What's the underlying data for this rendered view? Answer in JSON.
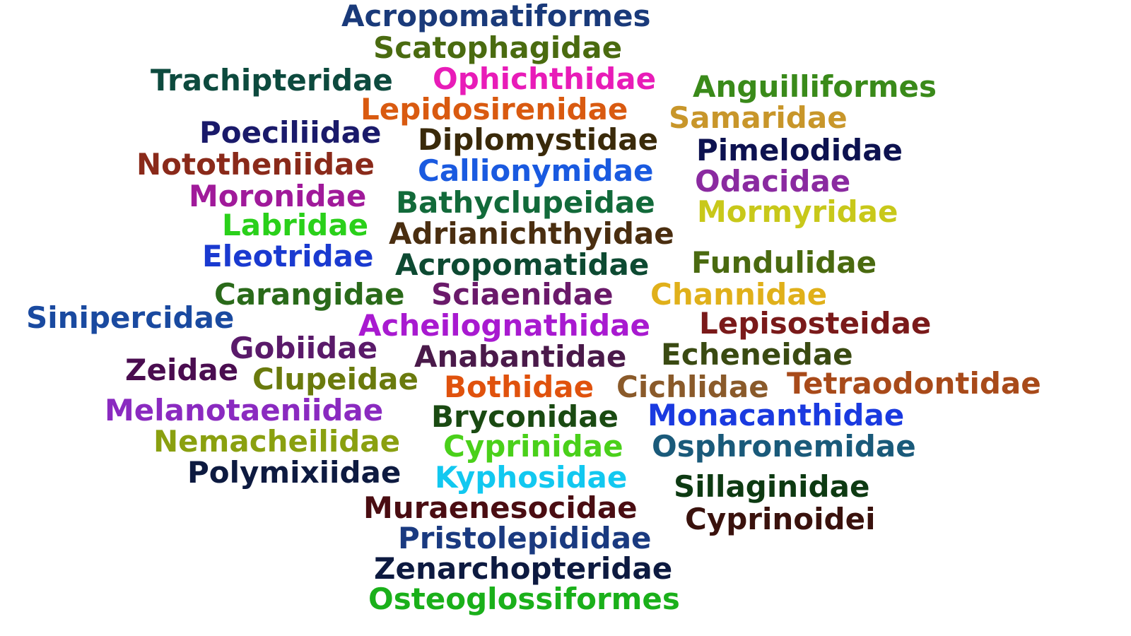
{
  "words": [
    {
      "text": "Acropomatiformes",
      "color": "#1a3a7a"
    },
    {
      "text": "Scatophagidae",
      "color": "#4a6b10"
    },
    {
      "text": "Trachipteridae",
      "color": "#0d4a3e"
    },
    {
      "text": "Ophichthidae",
      "color": "#e81cb8"
    },
    {
      "text": "Anguilliformes",
      "color": "#3a8a1a"
    },
    {
      "text": "Lepidosirenidae",
      "color": "#d95a10"
    },
    {
      "text": "Samaridae",
      "color": "#c8962a"
    },
    {
      "text": "Poeciliidae",
      "color": "#1a1a6a"
    },
    {
      "text": "Diplomystidae",
      "color": "#3a2a0a"
    },
    {
      "text": "Pimelodidae",
      "color": "#0d1250"
    },
    {
      "text": "Nototheniidae",
      "color": "#8a2a1a"
    },
    {
      "text": "Callionymidae",
      "color": "#1a5ae0"
    },
    {
      "text": "Odacidae",
      "color": "#8a2aa0"
    },
    {
      "text": "Moronidae",
      "color": "#a01a9a"
    },
    {
      "text": "Bathyclupeidae",
      "color": "#126a3a"
    },
    {
      "text": "Mormyridae",
      "color": "#c8c81a"
    },
    {
      "text": "Labridae",
      "color": "#2ad01a"
    },
    {
      "text": "Adrianichthyidae",
      "color": "#4a2e10"
    },
    {
      "text": "Eleotridae",
      "color": "#1a3ad0"
    },
    {
      "text": "Acropomatidae",
      "color": "#0d4a32"
    },
    {
      "text": "Fundulidae",
      "color": "#4a6a10"
    },
    {
      "text": "Carangidae",
      "color": "#2a6a1a"
    },
    {
      "text": "Sciaenidae",
      "color": "#6a1a6a"
    },
    {
      "text": "Channidae",
      "color": "#e0b01a"
    },
    {
      "text": "Sinipercidae",
      "color": "#1a4aa0"
    },
    {
      "text": "Acheilognathidae",
      "color": "#a81ad0"
    },
    {
      "text": "Lepisosteidae",
      "color": "#7a1a1a"
    },
    {
      "text": "Gobiidae",
      "color": "#5a1a6a"
    },
    {
      "text": "Anabantidae",
      "color": "#4a1a4a"
    },
    {
      "text": "Echeneidae",
      "color": "#3a4a12"
    },
    {
      "text": "Zeidae",
      "color": "#4a0d50"
    },
    {
      "text": "Clupeidae",
      "color": "#6a7a0d"
    },
    {
      "text": "Bothidae",
      "color": "#e0520d"
    },
    {
      "text": "Cichlidae",
      "color": "#8a5a2a"
    },
    {
      "text": "Tetraodontidae",
      "color": "#a84a1a"
    },
    {
      "text": "Melanotaeniidae",
      "color": "#8a2ac0"
    },
    {
      "text": "Bryconidae",
      "color": "#1a4a12"
    },
    {
      "text": "Monacanthidae",
      "color": "#1a3ae0"
    },
    {
      "text": "Nemacheilidae",
      "color": "#8aa010"
    },
    {
      "text": "Cyprinidae",
      "color": "#4ad01a"
    },
    {
      "text": "Osphronemidae",
      "color": "#1a5a7a"
    },
    {
      "text": "Polymixiidae",
      "color": "#0d1a40"
    },
    {
      "text": "Kyphosidae",
      "color": "#12c8f0"
    },
    {
      "text": "Sillaginidae",
      "color": "#0d3a12"
    },
    {
      "text": "Muraenesocidae",
      "color": "#4a0d12"
    },
    {
      "text": "Cyprinoidei",
      "color": "#3a120d"
    },
    {
      "text": "Pristolepididae",
      "color": "#1a3a80"
    },
    {
      "text": "Zenarchopteridae",
      "color": "#0d1a40"
    },
    {
      "text": "Osteoglossiformes",
      "color": "#1ab01a"
    }
  ]
}
